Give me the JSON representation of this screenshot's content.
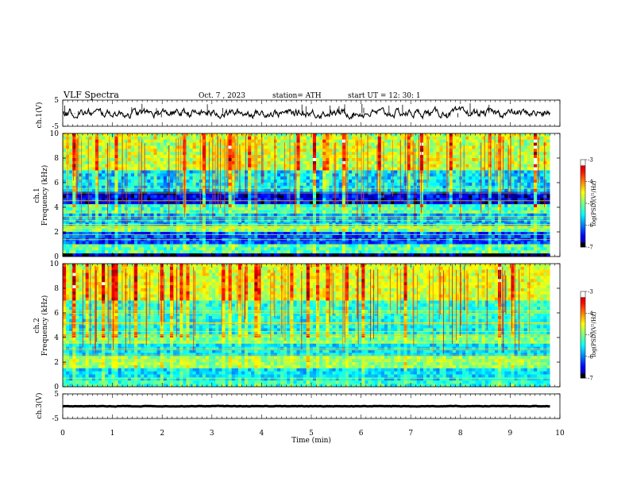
{
  "header": {
    "title": "VLF  Spectra",
    "date": "Oct. 7  , 2023",
    "station": "station= ATH",
    "start": "start  UT  =    12: 30: 1"
  },
  "chart_data": [
    {
      "type": "line",
      "panel": "ch1-waveform",
      "ylabel": "ch.1(V)",
      "ylim": [
        -5,
        5
      ],
      "yticks": [
        "5",
        "-5"
      ],
      "xlim": [
        0,
        10
      ],
      "line_color": "#000000",
      "baseline_v": 0,
      "duration_min": 9.8
    },
    {
      "type": "heatmap",
      "panel": "ch1-spectrogram",
      "ylabel_top": "ch.1",
      "ylabel": "Frequency  (kHz)",
      "ylim": [
        0,
        10
      ],
      "yticks": [
        "0",
        "2",
        "4",
        "6",
        "8",
        "10"
      ],
      "xlim": [
        0,
        10
      ],
      "bands_khz": [
        {
          "from": 0,
          "to": 0.3,
          "level": -7
        },
        {
          "from": 0.3,
          "to": 1.0,
          "level": -5.2
        },
        {
          "from": 1.0,
          "to": 2.0,
          "level": -6.2
        },
        {
          "from": 2.0,
          "to": 2.5,
          "level": -5.0
        },
        {
          "from": 2.5,
          "to": 3.6,
          "level": -5.8
        },
        {
          "from": 3.6,
          "to": 4.3,
          "level": -5.2
        },
        {
          "from": 4.3,
          "to": 5.3,
          "level": -6.6
        },
        {
          "from": 5.3,
          "to": 7.0,
          "level": -5.6
        },
        {
          "from": 7.0,
          "to": 10.0,
          "level": -4.7
        }
      ],
      "colorbar": {
        "ticks": [
          "-3",
          "-4",
          "-5",
          "-6",
          "-7"
        ],
        "label": "log(PSD)(V²/Hz)",
        "range": [
          -7,
          -3
        ]
      }
    },
    {
      "type": "heatmap",
      "panel": "ch2-spectrogram",
      "ylabel_top": "ch.2",
      "ylabel": "Frequency  (kHz)",
      "ylim": [
        0,
        10
      ],
      "yticks": [
        "0",
        "2",
        "4",
        "6",
        "8",
        "10"
      ],
      "xlim": [
        0,
        10
      ],
      "bands_khz": [
        {
          "from": 0,
          "to": 0.4,
          "level": -5.3
        },
        {
          "from": 0.4,
          "to": 1.6,
          "level": -5.6
        },
        {
          "from": 1.6,
          "to": 2.4,
          "level": -4.9
        },
        {
          "from": 2.4,
          "to": 3.4,
          "level": -5.6
        },
        {
          "from": 3.4,
          "to": 4.2,
          "level": -5.0
        },
        {
          "from": 4.2,
          "to": 5.5,
          "level": -5.4
        },
        {
          "from": 5.5,
          "to": 7.0,
          "level": -5.3
        },
        {
          "from": 7.0,
          "to": 10.0,
          "level": -4.6
        }
      ],
      "colorbar": {
        "ticks": [
          "-3",
          "-4",
          "-5",
          "-6",
          "-7"
        ],
        "label": "log(PSD)(V²/Hz)",
        "range": [
          -7,
          -3
        ]
      }
    },
    {
      "type": "line",
      "panel": "ch3-waveform",
      "ylabel": "ch.3(V)",
      "ylim": [
        -5,
        5
      ],
      "yticks": [
        "5",
        "-5"
      ],
      "xlim": [
        0,
        10
      ],
      "line_color": "#000000",
      "baseline_v": 0,
      "duration_min": 9.8
    }
  ],
  "xaxis": {
    "label": "Time  (min)",
    "ticks": [
      "0",
      "1",
      "2",
      "3",
      "4",
      "5",
      "6",
      "7",
      "8",
      "9",
      "10"
    ]
  }
}
